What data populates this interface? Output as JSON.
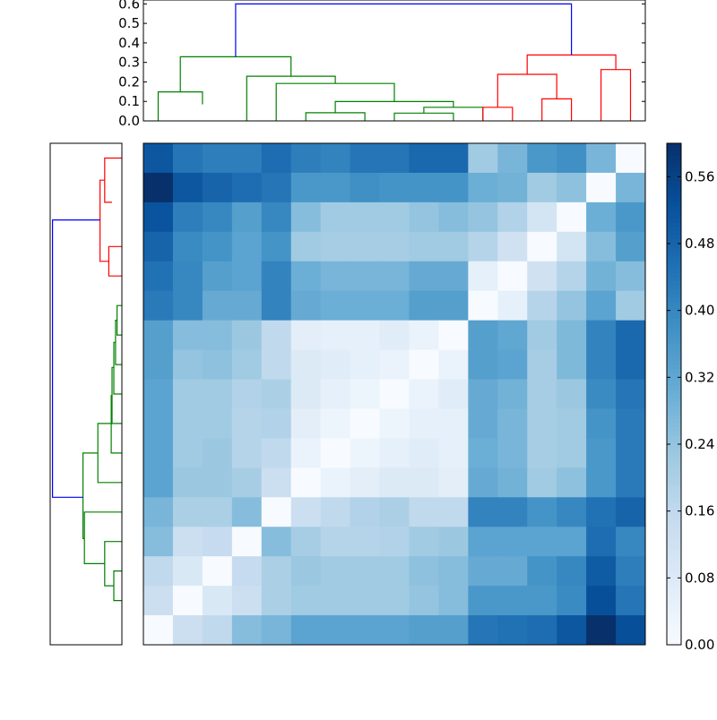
{
  "chart_data": [
    {
      "type": "dendrogram",
      "orientation": "top",
      "yticks": [
        "0.0",
        "0.1",
        "0.2",
        "0.3",
        "0.4",
        "0.5",
        "0.6"
      ],
      "ylim": [
        0,
        0.62
      ],
      "link_colors": {
        "root": "#0000ff",
        "left_cluster": "#008000",
        "right_cluster": "#ff0000"
      },
      "links": [
        {
          "a": 0.5,
          "b": 2.0,
          "ha": 0.0,
          "hb": 0.085,
          "h": 0.149,
          "color": "#008000"
        },
        {
          "a": 5.5,
          "b": 7.5,
          "ha": 0.0,
          "hb": 0.0,
          "h": 0.042,
          "color": "#008000"
        },
        {
          "a": 8.5,
          "b": 10.5,
          "ha": 0.0,
          "hb": 0.0,
          "h": 0.04,
          "color": "#008000"
        },
        {
          "a": 9.5,
          "b": 11.5,
          "ha": 0.04,
          "hb": 0.0,
          "h": 0.07,
          "color": "#008000"
        },
        {
          "a": 6.5,
          "b": 10.5,
          "ha": 0.042,
          "hb": 0.07,
          "h": 0.099,
          "color": "#008000"
        },
        {
          "a": 4.5,
          "b": 8.5,
          "ha": 0.0,
          "hb": 0.099,
          "h": 0.192,
          "color": "#008000"
        },
        {
          "a": 3.5,
          "b": 6.5,
          "ha": 0.0,
          "hb": 0.192,
          "h": 0.229,
          "color": "#008000"
        },
        {
          "a": 1.25,
          "b": 5.0,
          "ha": 0.149,
          "hb": 0.229,
          "h": 0.329,
          "color": "#008000"
        },
        {
          "a": 11.5,
          "b": 12.5,
          "ha": 0.0,
          "hb": 0.0,
          "h": 0.07,
          "color": "#ff0000"
        },
        {
          "a": 13.5,
          "b": 14.5,
          "ha": 0.0,
          "hb": 0.0,
          "h": 0.113,
          "color": "#ff0000"
        },
        {
          "a": 12.0,
          "b": 14.0,
          "ha": 0.07,
          "hb": 0.113,
          "h": 0.239,
          "color": "#ff0000"
        },
        {
          "a": 15.5,
          "b": 16.5,
          "ha": 0.0,
          "hb": 0.0,
          "h": 0.263,
          "color": "#ff0000"
        },
        {
          "a": 13.0,
          "b": 16.0,
          "ha": 0.239,
          "hb": 0.263,
          "h": 0.338,
          "color": "#ff0000"
        },
        {
          "a": 3.125,
          "b": 14.5,
          "ha": 0.329,
          "hb": 0.338,
          "h": 0.6,
          "color": "#0000ff"
        }
      ]
    },
    {
      "type": "dendrogram",
      "orientation": "left",
      "link_colors": {
        "root": "#0000ff",
        "top_cluster": "#ff0000",
        "bottom_cluster": "#008000"
      },
      "links": [
        {
          "a": 0.5,
          "b": 2.0,
          "ha": 0.0,
          "hb": 0.085,
          "h": 0.149,
          "color": "#ff0000"
        },
        {
          "a": 3.5,
          "b": 4.5,
          "ha": 0.0,
          "hb": 0.0,
          "h": 0.113,
          "color": "#ff0000"
        },
        {
          "a": 1.25,
          "b": 4.0,
          "ha": 0.149,
          "hb": 0.113,
          "h": 0.189,
          "color": "#ff0000"
        },
        {
          "a": 5.5,
          "b": 6.5,
          "ha": 0.0,
          "hb": 0.0,
          "h": 0.042,
          "color": "#008000"
        },
        {
          "a": 6.0,
          "b": 7.5,
          "ha": 0.042,
          "hb": 0.0,
          "h": 0.055,
          "color": "#008000"
        },
        {
          "a": 6.75,
          "b": 8.5,
          "ha": 0.055,
          "hb": 0.0,
          "h": 0.07,
          "color": "#008000"
        },
        {
          "a": 7.6,
          "b": 9.5,
          "ha": 0.07,
          "hb": 0.0,
          "h": 0.085,
          "color": "#008000"
        },
        {
          "a": 8.55,
          "b": 10.5,
          "ha": 0.085,
          "hb": 0.0,
          "h": 0.092,
          "color": "#008000"
        },
        {
          "a": 9.5,
          "b": 11.5,
          "ha": 0.092,
          "hb": 0.0,
          "h": 0.208,
          "color": "#008000"
        },
        {
          "a": 14.5,
          "b": 15.5,
          "ha": 0.0,
          "hb": 0.0,
          "h": 0.07,
          "color": "#008000"
        },
        {
          "a": 13.5,
          "b": 15.0,
          "ha": 0.0,
          "hb": 0.07,
          "h": 0.149,
          "color": "#008000"
        },
        {
          "a": 12.5,
          "b": 14.25,
          "ha": 0.0,
          "hb": 0.149,
          "h": 0.324,
          "color": "#008000"
        },
        {
          "a": 10.5,
          "b": 13.4,
          "ha": 0.208,
          "hb": 0.324,
          "h": 0.336,
          "color": "#008000"
        },
        {
          "a": 2.6,
          "b": 12.0,
          "ha": 0.189,
          "hb": 0.336,
          "h": 0.6,
          "color": "#0000ff"
        }
      ]
    },
    {
      "type": "heatmap",
      "rows": 17,
      "cols": 17,
      "colormap": [
        "#f7fbff",
        "#deebf7",
        "#c6dbef",
        "#9ecae1",
        "#6baed6",
        "#4292c6",
        "#2171b5",
        "#08519c",
        "#08306b"
      ],
      "vmin": 0.0,
      "vmax": 0.6,
      "values": [
        [
          0.51,
          0.44,
          0.42,
          0.42,
          0.46,
          0.42,
          0.41,
          0.44,
          0.44,
          0.47,
          0.47,
          0.22,
          0.28,
          0.36,
          0.38,
          0.28,
          0.0
        ],
        [
          0.6,
          0.51,
          0.48,
          0.46,
          0.44,
          0.36,
          0.36,
          0.38,
          0.37,
          0.37,
          0.37,
          0.3,
          0.29,
          0.22,
          0.25,
          0.0,
          0.28
        ],
        [
          0.52,
          0.42,
          0.4,
          0.34,
          0.4,
          0.26,
          0.22,
          0.22,
          0.22,
          0.24,
          0.26,
          0.24,
          0.19,
          0.11,
          0.0,
          0.3,
          0.36
        ],
        [
          0.48,
          0.39,
          0.37,
          0.33,
          0.37,
          0.22,
          0.21,
          0.21,
          0.21,
          0.22,
          0.22,
          0.18,
          0.12,
          0.0,
          0.11,
          0.26,
          0.34
        ],
        [
          0.45,
          0.4,
          0.34,
          0.33,
          0.41,
          0.3,
          0.28,
          0.28,
          0.28,
          0.31,
          0.31,
          0.05,
          0.0,
          0.12,
          0.18,
          0.29,
          0.26
        ],
        [
          0.43,
          0.4,
          0.31,
          0.31,
          0.41,
          0.31,
          0.3,
          0.3,
          0.3,
          0.34,
          0.34,
          0.0,
          0.05,
          0.18,
          0.24,
          0.33,
          0.22
        ],
        [
          0.34,
          0.26,
          0.26,
          0.23,
          0.16,
          0.06,
          0.05,
          0.05,
          0.07,
          0.04,
          0.0,
          0.34,
          0.32,
          0.22,
          0.27,
          0.41,
          0.47
        ],
        [
          0.34,
          0.24,
          0.25,
          0.22,
          0.16,
          0.08,
          0.07,
          0.05,
          0.04,
          0.0,
          0.04,
          0.34,
          0.33,
          0.21,
          0.27,
          0.41,
          0.47
        ],
        [
          0.33,
          0.22,
          0.22,
          0.19,
          0.2,
          0.08,
          0.05,
          0.03,
          0.0,
          0.04,
          0.07,
          0.31,
          0.29,
          0.21,
          0.23,
          0.39,
          0.44
        ],
        [
          0.33,
          0.22,
          0.22,
          0.18,
          0.19,
          0.06,
          0.03,
          0.0,
          0.03,
          0.05,
          0.05,
          0.31,
          0.28,
          0.21,
          0.22,
          0.37,
          0.43
        ],
        [
          0.33,
          0.22,
          0.23,
          0.18,
          0.16,
          0.04,
          0.0,
          0.03,
          0.05,
          0.07,
          0.05,
          0.3,
          0.28,
          0.21,
          0.22,
          0.36,
          0.43
        ],
        [
          0.33,
          0.23,
          0.23,
          0.21,
          0.13,
          0.0,
          0.04,
          0.06,
          0.08,
          0.08,
          0.06,
          0.31,
          0.29,
          0.22,
          0.25,
          0.36,
          0.43
        ],
        [
          0.28,
          0.2,
          0.2,
          0.26,
          0.0,
          0.13,
          0.16,
          0.19,
          0.2,
          0.16,
          0.16,
          0.41,
          0.41,
          0.37,
          0.4,
          0.45,
          0.48
        ],
        [
          0.26,
          0.13,
          0.15,
          0.0,
          0.26,
          0.21,
          0.18,
          0.18,
          0.19,
          0.22,
          0.23,
          0.33,
          0.33,
          0.33,
          0.33,
          0.46,
          0.4
        ],
        [
          0.16,
          0.09,
          0.0,
          0.15,
          0.2,
          0.23,
          0.22,
          0.22,
          0.22,
          0.25,
          0.26,
          0.31,
          0.31,
          0.37,
          0.4,
          0.5,
          0.42
        ],
        [
          0.13,
          0.0,
          0.09,
          0.13,
          0.2,
          0.22,
          0.22,
          0.22,
          0.22,
          0.24,
          0.26,
          0.36,
          0.36,
          0.36,
          0.39,
          0.53,
          0.44
        ],
        [
          0.0,
          0.13,
          0.16,
          0.26,
          0.28,
          0.33,
          0.33,
          0.33,
          0.33,
          0.34,
          0.34,
          0.44,
          0.45,
          0.46,
          0.51,
          0.6,
          0.53
        ]
      ]
    },
    {
      "type": "colorbar",
      "ticks": [
        "0.00",
        "0.08",
        "0.16",
        "0.24",
        "0.32",
        "0.40",
        "0.48",
        "0.56"
      ],
      "tick_values": [
        0.0,
        0.08,
        0.16,
        0.24,
        0.32,
        0.4,
        0.48,
        0.56
      ],
      "vmin": 0.0,
      "vmax": 0.6
    }
  ]
}
